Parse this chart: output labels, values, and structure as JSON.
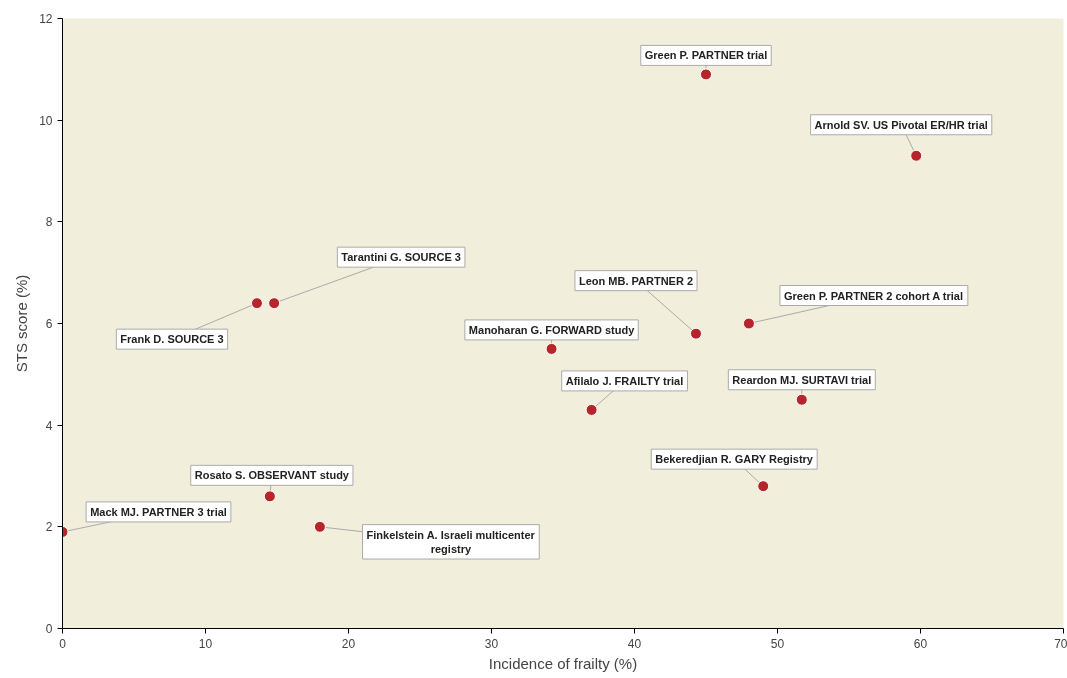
{
  "chart_data": {
    "type": "scatter",
    "xlabel": "Incidence of frailty (%)",
    "ylabel": "STS score (%)",
    "x": [
      45.0,
      59.7,
      14.8,
      13.6,
      44.3,
      48.0,
      34.2,
      37.0,
      51.7,
      49.0,
      14.5,
      0,
      18.0
    ],
    "series": [
      {
        "color": "#b5252a",
        "values": [
          10.9,
          9.3,
          6.4,
          6.4,
          5.8,
          6.0,
          5.5,
          4.3,
          4.5,
          2.8,
          2.6,
          1.9,
          2.0
        ]
      }
    ],
    "xlim": [
      0,
      70
    ],
    "ylim": [
      0,
      12
    ],
    "xticks": [
      0,
      10,
      20,
      30,
      40,
      50,
      60,
      70
    ],
    "yticks": [
      0,
      2,
      4,
      6,
      8,
      10,
      12
    ],
    "grid": false,
    "marker": "circle",
    "annotations": [
      {
        "text": "Green P. PARTNER trial",
        "x": 45.0,
        "y": 10.9
      },
      {
        "text": "Arnold SV. US Pivotal ER/HR trial",
        "x": 59.7,
        "y": 9.3
      },
      {
        "text": "Tarantini G. SOURCE 3",
        "x": 14.8,
        "y": 6.4
      },
      {
        "text": "Frank D. SOURCE 3",
        "x": 13.6,
        "y": 6.4
      },
      {
        "text": "Leon MB. PARTNER 2",
        "x": 44.3,
        "y": 5.8
      },
      {
        "text": "Green P. PARTNER 2 cohort A trial",
        "x": 48.0,
        "y": 6.0
      },
      {
        "text": "Manoharan G. FORWARD study",
        "x": 34.2,
        "y": 5.5
      },
      {
        "text": "Afilalo J. FRAILTY trial",
        "x": 37.0,
        "y": 4.3
      },
      {
        "text": "Reardon MJ. SURTAVI trial",
        "x": 51.7,
        "y": 4.5
      },
      {
        "text": "Bekeredjian R. GARY Registry",
        "x": 49.0,
        "y": 2.8
      },
      {
        "text": "Rosato S. OBSERVANT study",
        "x": 14.5,
        "y": 2.6
      },
      {
        "text": "Mack MJ. PARTNER 3 trial",
        "x": 0,
        "y": 1.9
      },
      {
        "text": "Finkelstein A. Israeli multicenter registry",
        "x": 18.0,
        "y": 2.0
      }
    ]
  }
}
